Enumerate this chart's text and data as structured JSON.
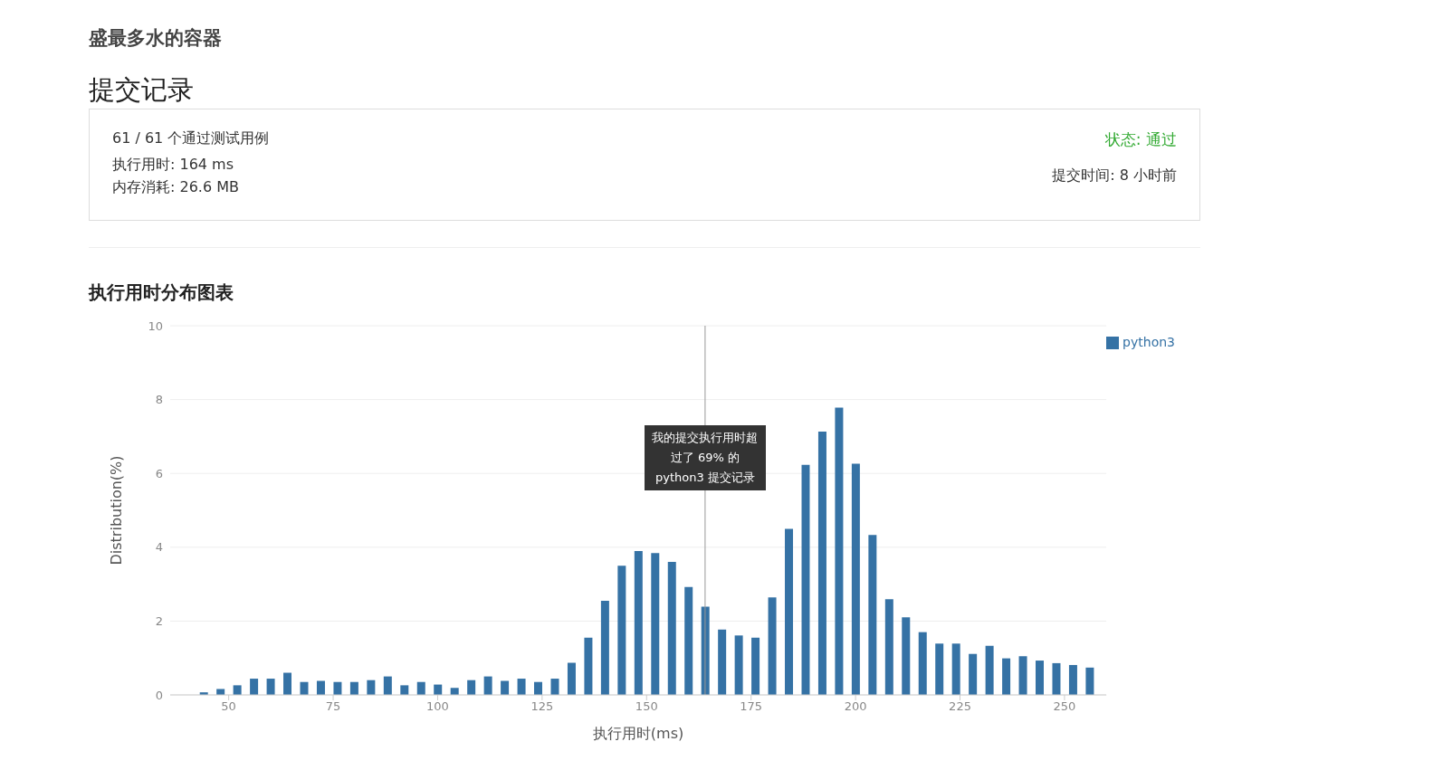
{
  "chart_data": {
    "type": "bar",
    "title": "执行用时分布图表",
    "xlabel": "执行用时(ms)",
    "ylabel": "Distribution(%)",
    "annotations": [
      "盛最多水的容器",
      "提交记录",
      "61 / 61 个通过测试用例",
      "执行用时: 164 ms",
      "内存消耗: 26.6 MB",
      "状态: 通过",
      "提交时间: 8 小时前"
    ],
    "x": [
      44,
      48,
      52,
      56,
      60,
      64,
      68,
      72,
      76,
      80,
      84,
      88,
      92,
      96,
      100,
      104,
      108,
      112,
      116,
      120,
      124,
      128,
      132,
      136,
      140,
      144,
      148,
      152,
      156,
      160,
      164,
      168,
      172,
      176,
      180,
      184,
      188,
      192,
      196,
      200,
      204,
      208,
      212,
      216,
      220,
      224,
      228,
      232,
      236,
      240,
      244,
      248,
      252,
      256
    ],
    "series": [
      {
        "name": "python3",
        "color": "#3572a5",
        "values": [
          0.07,
          0.16,
          0.26,
          0.44,
          0.44,
          0.6,
          0.35,
          0.38,
          0.35,
          0.35,
          0.4,
          0.5,
          0.26,
          0.35,
          0.28,
          0.19,
          0.4,
          0.5,
          0.38,
          0.44,
          0.35,
          0.44,
          0.87,
          1.55,
          2.55,
          3.5,
          3.9,
          3.84,
          3.6,
          2.92,
          2.39,
          1.77,
          1.61,
          1.55,
          2.64,
          4.5,
          6.23,
          7.13,
          7.78,
          6.26,
          4.33,
          2.59,
          2.1,
          1.7,
          1.39,
          1.39,
          1.11,
          1.33,
          0.99,
          1.05,
          0.93,
          0.86,
          0.81,
          0.74
        ]
      }
    ],
    "xlim": [
      36,
      260
    ],
    "xticks": [
      50,
      75,
      100,
      125,
      150,
      175,
      200,
      225,
      250
    ],
    "ylim": [
      0,
      10
    ],
    "yticks": [
      0,
      2,
      4,
      6,
      8,
      10
    ],
    "grid": "y",
    "legend": "top right",
    "ref_lines": [
      {
        "axis": "x",
        "value": 164,
        "label": "我的提交执行用时超过了 69% 的 python3 提交记录",
        "color": "#999999"
      }
    ]
  }
}
